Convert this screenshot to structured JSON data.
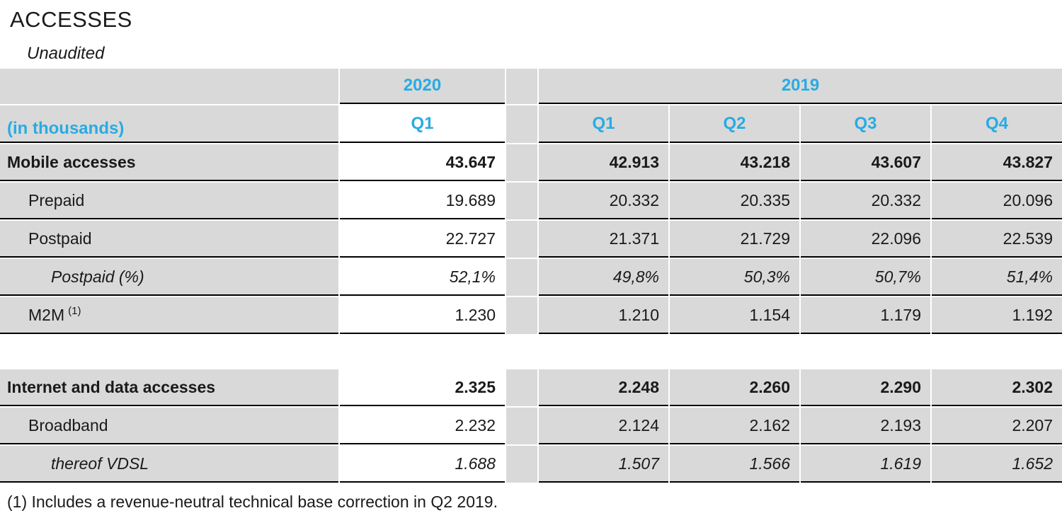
{
  "page": {
    "title": "ACCESSES",
    "subtitle": "Unaudited",
    "footnote": "(1) Includes a revenue-neutral technical base correction in Q2 2019."
  },
  "colors": {
    "accent_blue": "#29abe2",
    "cell_gray": "#d9d9d9",
    "border_black": "#000000"
  },
  "table": {
    "unit_label": "(in thousands)",
    "year_2020": {
      "year": "2020",
      "quarters": [
        "Q1"
      ]
    },
    "year_2019": {
      "year": "2019",
      "quarters": [
        "Q1",
        "Q2",
        "Q3",
        "Q4"
      ]
    },
    "rows": [
      {
        "label": "Mobile accesses",
        "indent": 0,
        "emphasis": "bold",
        "values": [
          "43.647",
          "42.913",
          "43.218",
          "43.607",
          "43.827"
        ]
      },
      {
        "label": "Prepaid",
        "indent": 1,
        "emphasis": "normal",
        "values": [
          "19.689",
          "20.332",
          "20.335",
          "20.332",
          "20.096"
        ]
      },
      {
        "label": "Postpaid",
        "indent": 1,
        "emphasis": "normal",
        "values": [
          "22.727",
          "21.371",
          "21.729",
          "22.096",
          "22.539"
        ]
      },
      {
        "label": "Postpaid (%)",
        "indent": 2,
        "emphasis": "italic",
        "values": [
          "52,1%",
          "49,8%",
          "50,3%",
          "50,7%",
          "51,4%"
        ]
      },
      {
        "label": "M2M",
        "label_sup": "(1)",
        "indent": 1,
        "emphasis": "normal",
        "values": [
          "1.230",
          "1.210",
          "1.154",
          "1.179",
          "1.192"
        ]
      },
      {
        "type": "gap"
      },
      {
        "label": "Internet and data accesses",
        "indent": 0,
        "emphasis": "bold",
        "values": [
          "2.325",
          "2.248",
          "2.260",
          "2.290",
          "2.302"
        ]
      },
      {
        "label": "Broadband",
        "indent": 1,
        "emphasis": "normal",
        "values": [
          "2.232",
          "2.124",
          "2.162",
          "2.193",
          "2.207"
        ]
      },
      {
        "label": "thereof VDSL",
        "indent": 2,
        "emphasis": "italic",
        "values": [
          "1.688",
          "1.507",
          "1.566",
          "1.619",
          "1.652"
        ]
      }
    ]
  }
}
